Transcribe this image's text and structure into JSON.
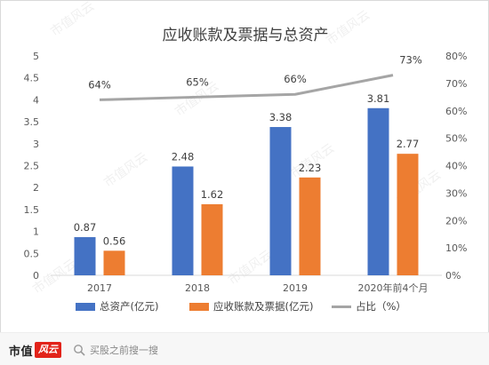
{
  "chart_data": {
    "type": "bar",
    "title": "应收账款及票据与总资产",
    "categories": [
      "2017",
      "2018",
      "2019",
      "2020年前4个月"
    ],
    "series": [
      {
        "name": "总资产(亿元)",
        "type": "bar",
        "axis": "left",
        "color": "#4472C4",
        "values": [
          0.87,
          2.48,
          3.38,
          3.81
        ]
      },
      {
        "name": "应收账款及票据(亿元)",
        "type": "bar",
        "axis": "left",
        "color": "#ED7D31",
        "values": [
          0.56,
          1.62,
          2.23,
          2.77
        ]
      },
      {
        "name": "占比（%）",
        "type": "line",
        "axis": "right",
        "color": "#A5A5A5",
        "values": [
          64,
          65,
          66,
          73
        ]
      }
    ],
    "data_labels": {
      "bars": [
        [
          "0.87",
          "0.56"
        ],
        [
          "2.48",
          "1.62"
        ],
        [
          "3.38",
          "2.23"
        ],
        [
          "3.81",
          "2.77"
        ]
      ],
      "line": [
        "64%",
        "65%",
        "66%",
        "73%"
      ]
    },
    "ylim_left": [
      0,
      5
    ],
    "yticks_left": [
      "0",
      "0.5",
      "1",
      "1.5",
      "2",
      "2.5",
      "3",
      "3.5",
      "4",
      "4.5",
      "5"
    ],
    "ylim_right": [
      0,
      80
    ],
    "yticks_right": [
      "0%",
      "10%",
      "20%",
      "30%",
      "40%",
      "50%",
      "60%",
      "70%",
      "80%"
    ],
    "grid": false,
    "legend_position": "bottom"
  },
  "footer": {
    "brand_text": "市值",
    "brand_mark": "风云",
    "search_text": "买股之前搜一搜"
  }
}
